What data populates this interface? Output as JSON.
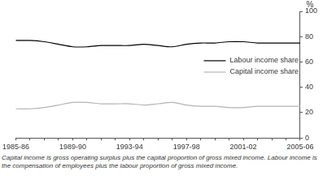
{
  "chart_data": {
    "type": "line",
    "categories": [
      "1985-86",
      null,
      null,
      null,
      "1989-90",
      null,
      null,
      null,
      "1993-94",
      null,
      null,
      null,
      "1997-98",
      null,
      null,
      null,
      "2001-02",
      null,
      null,
      null,
      "2005-06"
    ],
    "series": [
      {
        "name": "Labour income share",
        "color": "#000000",
        "values": [
          77,
          77,
          76,
          74,
          72,
          72,
          73,
          73,
          73,
          74,
          73,
          72,
          74,
          75,
          75,
          76,
          76,
          75,
          75,
          75,
          75
        ]
      },
      {
        "name": "Capital income share",
        "color": "#b4b4b4",
        "values": [
          23,
          23,
          24,
          26,
          28,
          28,
          27,
          27,
          27,
          26,
          27,
          28,
          26,
          25,
          25,
          24,
          24,
          25,
          25,
          25,
          25
        ]
      }
    ],
    "y_label": "%",
    "ylim": [
      0,
      100
    ],
    "yticks": [
      0,
      20,
      40,
      60,
      80,
      100
    ],
    "grid": false,
    "legend": "right",
    "footnote": "Capital income is gross operating surplus plus the capital proportion of gross mixed income. Labour income is the compensation of employees plus the labour proportion of gross mixed income."
  }
}
